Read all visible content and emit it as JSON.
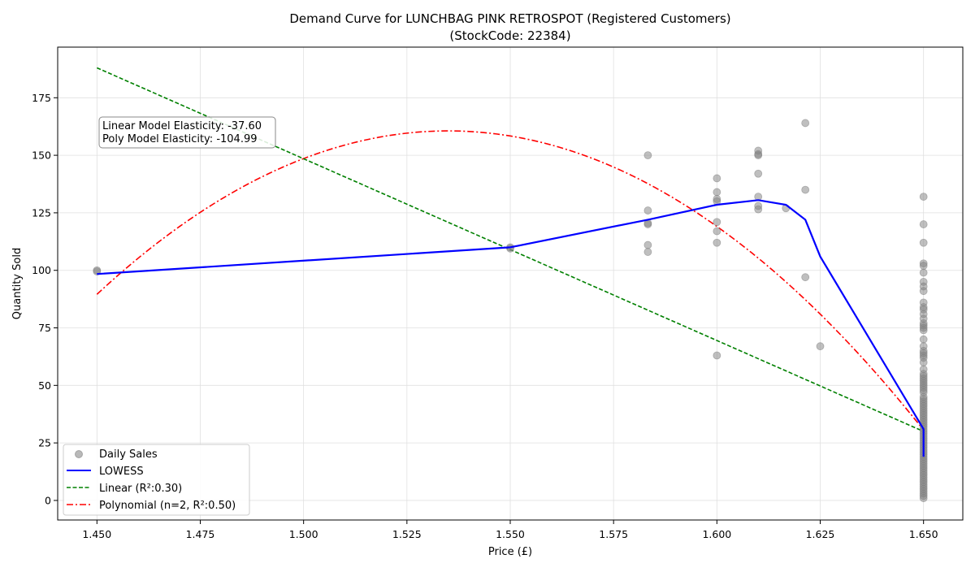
{
  "chart_data": {
    "type": "scatter",
    "title": "Demand Curve for LUNCHBAG PINK RETROSPOT (Registered Customers)",
    "subtitle": "(StockCode: 22384)",
    "xlabel": "Price (£)",
    "ylabel": "Quantity Sold",
    "xlim": [
      1.4405,
      1.6595
    ],
    "ylim": [
      -8.5,
      197
    ],
    "xticks": [
      1.45,
      1.475,
      1.5,
      1.525,
      1.55,
      1.575,
      1.6,
      1.625,
      1.65
    ],
    "xtick_labels": [
      "1.450",
      "1.475",
      "1.500",
      "1.525",
      "1.550",
      "1.575",
      "1.600",
      "1.625",
      "1.650"
    ],
    "yticks": [
      0,
      25,
      50,
      75,
      100,
      125,
      150,
      175
    ],
    "ytick_labels": [
      "0",
      "25",
      "50",
      "75",
      "100",
      "125",
      "150",
      "175"
    ],
    "grid": true,
    "legend_position": "bottom-left",
    "annotation": {
      "lines": [
        "Linear Model Elasticity: -37.60",
        "Poly Model Elasticity: -104.99"
      ],
      "position": "top-left"
    },
    "series": [
      {
        "name": "Daily Sales",
        "kind": "scatter",
        "color": "#808080",
        "points": [
          [
            1.45,
            100
          ],
          [
            1.45,
            99.5
          ],
          [
            1.55,
            110
          ],
          [
            1.55,
            109.5
          ],
          [
            1.5833,
            150
          ],
          [
            1.5833,
            126
          ],
          [
            1.5833,
            120
          ],
          [
            1.5833,
            120.5
          ],
          [
            1.5833,
            111
          ],
          [
            1.5833,
            108
          ],
          [
            1.6,
            140
          ],
          [
            1.6,
            134
          ],
          [
            1.6,
            131
          ],
          [
            1.6,
            130
          ],
          [
            1.6,
            121
          ],
          [
            1.6,
            117
          ],
          [
            1.6,
            112
          ],
          [
            1.6,
            63
          ],
          [
            1.61,
            152
          ],
          [
            1.61,
            150
          ],
          [
            1.61,
            150.5
          ],
          [
            1.61,
            142
          ],
          [
            1.61,
            132
          ],
          [
            1.61,
            128
          ],
          [
            1.61,
            126.5
          ],
          [
            1.6167,
            127
          ],
          [
            1.6214,
            164
          ],
          [
            1.6214,
            135
          ],
          [
            1.6214,
            97
          ],
          [
            1.625,
            67
          ],
          [
            1.65,
            132
          ],
          [
            1.65,
            120
          ],
          [
            1.65,
            112
          ],
          [
            1.65,
            103
          ],
          [
            1.65,
            102
          ],
          [
            1.65,
            99
          ],
          [
            1.65,
            95
          ],
          [
            1.65,
            93
          ],
          [
            1.65,
            91
          ],
          [
            1.65,
            86
          ],
          [
            1.65,
            84
          ],
          [
            1.65,
            83
          ],
          [
            1.65,
            81
          ],
          [
            1.65,
            79
          ],
          [
            1.65,
            77
          ],
          [
            1.65,
            76
          ],
          [
            1.65,
            75
          ],
          [
            1.65,
            74
          ],
          [
            1.65,
            70
          ],
          [
            1.65,
            67
          ],
          [
            1.65,
            65
          ],
          [
            1.65,
            64
          ],
          [
            1.65,
            63
          ],
          [
            1.65,
            62
          ],
          [
            1.65,
            60
          ],
          [
            1.65,
            57
          ],
          [
            1.65,
            55
          ],
          [
            1.65,
            54
          ],
          [
            1.65,
            53
          ],
          [
            1.65,
            52
          ],
          [
            1.65,
            51
          ],
          [
            1.65,
            50
          ],
          [
            1.65,
            49
          ],
          [
            1.65,
            48
          ],
          [
            1.65,
            47
          ],
          [
            1.65,
            45
          ],
          [
            1.65,
            44
          ],
          [
            1.65,
            43
          ],
          [
            1.65,
            42
          ],
          [
            1.65,
            41
          ],
          [
            1.65,
            40
          ],
          [
            1.65,
            39
          ],
          [
            1.65,
            38
          ],
          [
            1.65,
            37
          ],
          [
            1.65,
            36
          ],
          [
            1.65,
            35
          ],
          [
            1.65,
            34
          ],
          [
            1.65,
            33
          ],
          [
            1.65,
            32
          ],
          [
            1.65,
            31
          ],
          [
            1.65,
            30
          ],
          [
            1.65,
            29
          ],
          [
            1.65,
            28
          ],
          [
            1.65,
            27
          ],
          [
            1.65,
            26
          ],
          [
            1.65,
            25
          ],
          [
            1.65,
            24
          ],
          [
            1.65,
            23
          ],
          [
            1.65,
            22
          ],
          [
            1.65,
            21
          ],
          [
            1.65,
            20
          ],
          [
            1.65,
            19
          ],
          [
            1.65,
            18
          ],
          [
            1.65,
            17
          ],
          [
            1.65,
            16
          ],
          [
            1.65,
            15
          ],
          [
            1.65,
            14
          ],
          [
            1.65,
            13
          ],
          [
            1.65,
            12
          ],
          [
            1.65,
            11
          ],
          [
            1.65,
            10
          ],
          [
            1.65,
            9
          ],
          [
            1.65,
            8
          ],
          [
            1.65,
            7
          ],
          [
            1.65,
            6
          ],
          [
            1.65,
            5
          ],
          [
            1.65,
            4
          ],
          [
            1.65,
            3
          ],
          [
            1.65,
            2
          ],
          [
            1.65,
            1
          ]
        ]
      },
      {
        "name": "LOWESS",
        "kind": "line",
        "color": "#0000ff",
        "dash": "solid",
        "points": [
          [
            1.45,
            98.4
          ],
          [
            1.55,
            110
          ],
          [
            1.5833,
            122
          ],
          [
            1.6,
            128.5
          ],
          [
            1.61,
            130.5
          ],
          [
            1.6167,
            128.5
          ],
          [
            1.6214,
            122
          ],
          [
            1.625,
            106
          ],
          [
            1.65,
            31
          ],
          [
            1.65,
            28
          ],
          [
            1.65,
            19
          ]
        ]
      },
      {
        "name": "Linear (R²:0.30)",
        "kind": "line",
        "color": "#008000",
        "dash": "dashed",
        "points": [
          [
            1.45,
            188
          ],
          [
            1.65,
            30
          ]
        ]
      },
      {
        "name": "Polynomial (n=2, R²:0.50)",
        "kind": "curve",
        "color": "#ff0000",
        "dash": "dashdot",
        "quadratic": {
          "vertex_x": 1.535,
          "vertex_y": 160.6,
          "a": -9830
        },
        "x_range": [
          1.45,
          1.65
        ]
      }
    ]
  }
}
